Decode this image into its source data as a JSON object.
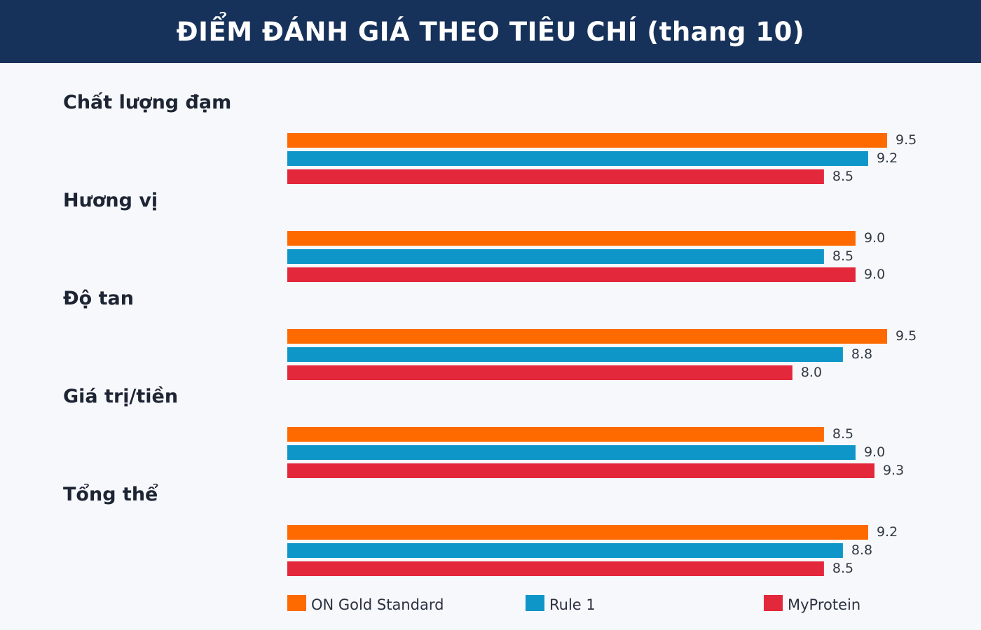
{
  "chart_data": {
    "type": "bar",
    "orientation": "horizontal",
    "title": "ĐIỂM ĐÁNH GIÁ THEO TIÊU CHÍ (thang 10)",
    "categories": [
      "Chất lượng đạm",
      "Hương vị",
      "Độ tan",
      "Giá trị/tiền",
      "Tổng thể"
    ],
    "series": [
      {
        "name": "ON Gold Standard",
        "color": "#ff6a00",
        "values": [
          9.5,
          9.0,
          9.5,
          8.5,
          9.2
        ]
      },
      {
        "name": "Rule 1",
        "color": "#0f96c9",
        "values": [
          9.2,
          8.5,
          8.8,
          9.0,
          8.8
        ]
      },
      {
        "name": "MyProtein",
        "color": "#e3283c",
        "values": [
          8.5,
          9.0,
          8.0,
          9.3,
          8.5
        ]
      }
    ],
    "xlim": [
      0,
      9.5
    ],
    "grid": false,
    "legend": "bottom"
  }
}
